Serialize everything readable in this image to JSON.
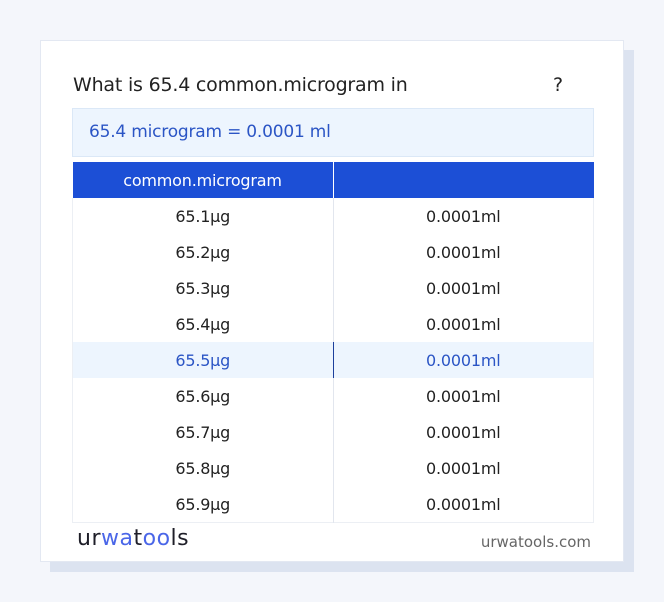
{
  "question": {
    "text": "What is 65.4 common.microgram in",
    "suffix": "?"
  },
  "result": "65.4 microgram = 0.0001 ml",
  "table": {
    "headers": [
      "common.microgram",
      ""
    ],
    "rows": [
      [
        "65.1µg",
        "0.0001ml"
      ],
      [
        "65.2µg",
        "0.0001ml"
      ],
      [
        "65.3µg",
        "0.0001ml"
      ],
      [
        "65.4µg",
        "0.0001ml"
      ],
      [
        "65.5µg",
        "0.0001ml"
      ],
      [
        "65.6µg",
        "0.0001ml"
      ],
      [
        "65.7µg",
        "0.0001ml"
      ],
      [
        "65.8µg",
        "0.0001ml"
      ],
      [
        "65.9µg",
        "0.0001ml"
      ]
    ],
    "highlighted_row": 4
  },
  "footer": {
    "logo": "urwatools",
    "site": "urwatools.com"
  },
  "colors": {
    "accent": "#1c4fd6",
    "highlight_bg": "#edf5fe",
    "highlight_text": "#2b55c5"
  }
}
